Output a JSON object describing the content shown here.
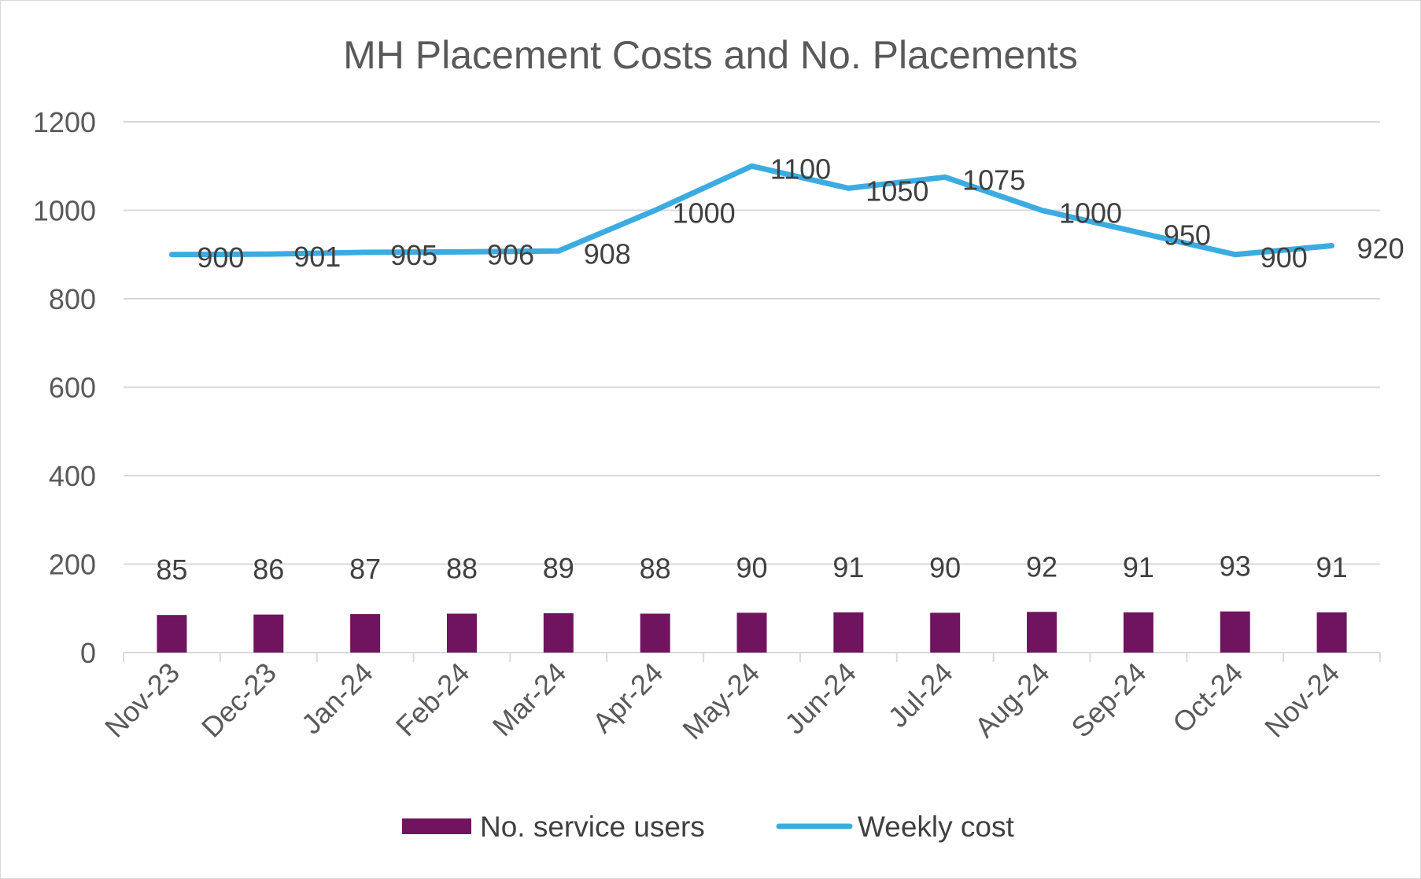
{
  "chart_data": {
    "type": "bar",
    "title": "MH Placement Costs and No. Placements",
    "categories": [
      "Nov-23",
      "Dec-23",
      "Jan-24",
      "Feb-24",
      "Mar-24",
      "Apr-24",
      "May-24",
      "Jun-24",
      "Jul-24",
      "Aug-24",
      "Sep-24",
      "Oct-24",
      "Nov-24"
    ],
    "series": [
      {
        "name": "No. service users",
        "type": "bar",
        "color": "#70145f",
        "values": [
          85,
          86,
          87,
          88,
          89,
          88,
          90,
          91,
          90,
          92,
          91,
          93,
          91
        ]
      },
      {
        "name": "Weekly cost",
        "type": "line",
        "color": "#3cace0",
        "values": [
          900,
          901,
          905,
          906,
          908,
          1000,
          1100,
          1050,
          1075,
          1000,
          950,
          900,
          920
        ]
      }
    ],
    "y_ticks": [
      "0",
      "200",
      "400",
      "600",
      "800",
      "1000",
      "1200"
    ],
    "ylim": [
      0,
      1200
    ],
    "grid": true,
    "legend_position": "bottom",
    "colors": {
      "gridline": "#d9d9d9",
      "axis": "#d9d9d9",
      "text": "#595959"
    }
  }
}
